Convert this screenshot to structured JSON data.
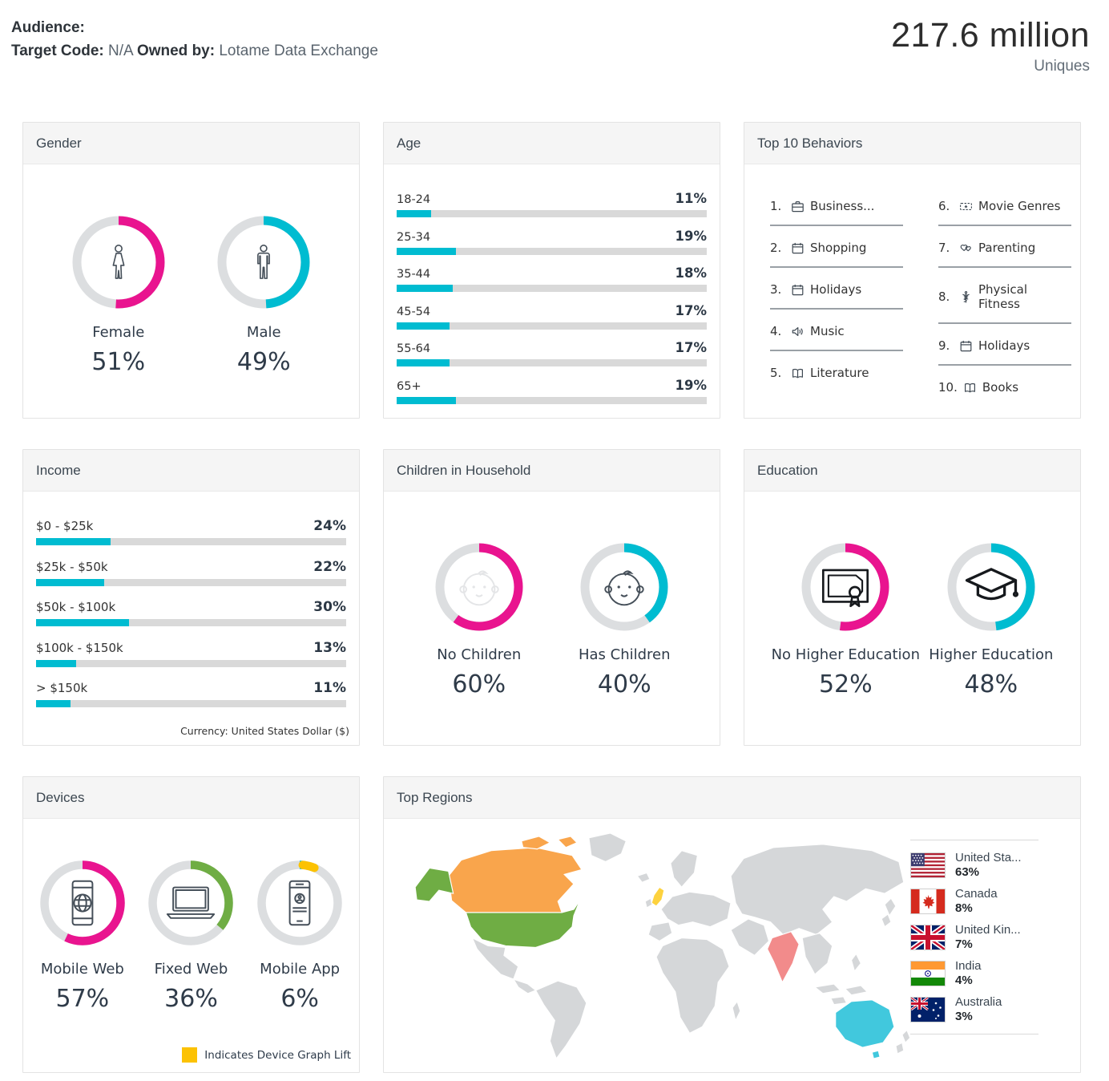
{
  "header": {
    "audience_label": "Audience:",
    "target_code_label": "Target Code:",
    "target_code_value": "N/A",
    "owned_by_label": "Owned by:",
    "owned_by_value": "Lotame Data Exchange",
    "uniques_value": "217.6 million",
    "uniques_label": "Uniques"
  },
  "colors": {
    "pink": "#e9148f",
    "cyan": "#00bcd1",
    "green": "#6fad44",
    "yellow": "#fcc203",
    "track": "#dcdee0"
  },
  "panels": {
    "gender": {
      "title": "Gender",
      "donuts": [
        {
          "label": "Female",
          "value_label": "51%",
          "icon": "female-icon",
          "segments": [
            {
              "pct": 51,
              "color": "pink"
            }
          ]
        },
        {
          "label": "Male",
          "value_label": "49%",
          "icon": "male-icon",
          "segments": [
            {
              "pct": 49,
              "color": "cyan"
            }
          ]
        }
      ]
    },
    "age": {
      "title": "Age",
      "bars": [
        {
          "label": "18-24",
          "pct": 11,
          "value_label": "11%"
        },
        {
          "label": "25-34",
          "pct": 19,
          "value_label": "19%"
        },
        {
          "label": "35-44",
          "pct": 18,
          "value_label": "18%"
        },
        {
          "label": "45-54",
          "pct": 17,
          "value_label": "17%"
        },
        {
          "label": "55-64",
          "pct": 17,
          "value_label": "17%"
        },
        {
          "label": "65+",
          "pct": 19,
          "value_label": "19%"
        }
      ]
    },
    "behaviors": {
      "title": "Top 10 Behaviors",
      "items": [
        {
          "rank": "1.",
          "icon": "briefcase-icon",
          "icon_ref": "#i-briefcase",
          "label": "Business..."
        },
        {
          "rank": "2.",
          "icon": "calendar-icon",
          "icon_ref": "#i-calendar",
          "label": "Shopping"
        },
        {
          "rank": "3.",
          "icon": "calendar-icon",
          "icon_ref": "#i-calendar",
          "label": "Holidays"
        },
        {
          "rank": "4.",
          "icon": "speaker-icon",
          "icon_ref": "#i-speaker",
          "label": "Music"
        },
        {
          "rank": "5.",
          "icon": "book-icon",
          "icon_ref": "#i-book",
          "label": "Literature"
        },
        {
          "rank": "6.",
          "icon": "ticket-icon",
          "icon_ref": "#i-ticket",
          "label": "Movie Genres"
        },
        {
          "rank": "7.",
          "icon": "hearts-icon",
          "icon_ref": "#i-hearts",
          "label": "Parenting"
        },
        {
          "rank": "8.",
          "icon": "caduceus-icon",
          "icon_ref": "#i-caduceus",
          "label": "Physical Fitness"
        },
        {
          "rank": "9.",
          "icon": "calendar-icon",
          "icon_ref": "#i-calendar",
          "label": "Holidays"
        },
        {
          "rank": "10.",
          "icon": "book-icon",
          "icon_ref": "#i-book",
          "label": "Books"
        }
      ]
    },
    "income": {
      "title": "Income",
      "bars": [
        {
          "label": "$0 - $25k",
          "pct": 24,
          "value_label": "24%"
        },
        {
          "label": "$25k - $50k",
          "pct": 22,
          "value_label": "22%"
        },
        {
          "label": "$50k - $100k",
          "pct": 30,
          "value_label": "30%"
        },
        {
          "label": "$100k - $150k",
          "pct": 13,
          "value_label": "13%"
        },
        {
          "label": "> $150k",
          "pct": 11,
          "value_label": "11%"
        }
      ],
      "footnote": "Currency: United States Dollar ($)"
    },
    "children": {
      "title": "Children in Household",
      "donuts": [
        {
          "label": "No Children",
          "value_label": "60%",
          "icon": "baby-icon",
          "segments": [
            {
              "pct": 60,
              "color": "pink"
            }
          ]
        },
        {
          "label": "Has Children",
          "value_label": "40%",
          "icon": "baby-icon",
          "segments": [
            {
              "pct": 40,
              "color": "cyan"
            }
          ]
        }
      ]
    },
    "education": {
      "title": "Education",
      "donuts": [
        {
          "label": "No Higher Education",
          "value_label": "52%",
          "icon": "diploma-icon",
          "segments": [
            {
              "pct": 52,
              "color": "pink"
            }
          ]
        },
        {
          "label": "Higher Education",
          "value_label": "48%",
          "icon": "graduation-cap-icon",
          "segments": [
            {
              "pct": 48,
              "color": "cyan"
            }
          ]
        }
      ]
    },
    "devices": {
      "title": "Devices",
      "donuts": [
        {
          "label": "Mobile Web",
          "value_label": "57%",
          "icon": "mobile-web-icon",
          "segments": [
            {
              "pct": 57,
              "color": "pink"
            }
          ]
        },
        {
          "label": "Fixed Web",
          "value_label": "36%",
          "icon": "laptop-icon",
          "segments": [
            {
              "pct": 36,
              "color": "green"
            }
          ]
        },
        {
          "label": "Mobile App",
          "value_label": "6%",
          "icon": "mobile-app-icon",
          "segments": [
            {
              "pct": 1.3,
              "color": "cyan"
            },
            {
              "pct": 5,
              "color": "yellow",
              "rounded": true
            }
          ]
        }
      ],
      "lift_legend": "Indicates Device Graph Lift"
    },
    "regions": {
      "title": "Top Regions",
      "legend": [
        {
          "name": "United Sta...",
          "full_name": "United States",
          "pct": "63%",
          "flag": "us-flag"
        },
        {
          "name": "Canada",
          "full_name": "Canada",
          "pct": "8%",
          "flag": "canada-flag"
        },
        {
          "name": "United Kin...",
          "full_name": "United Kingdom",
          "pct": "7%",
          "flag": "uk-flag"
        },
        {
          "name": "India",
          "full_name": "India",
          "pct": "4%",
          "flag": "india-flag"
        },
        {
          "name": "Australia",
          "full_name": "Australia",
          "pct": "3%",
          "flag": "australia-flag"
        }
      ],
      "map_colors": {
        "united_states": "#6fad44",
        "canada": "#f9a54c",
        "united_kingdom": "#fdd23e",
        "india": "#f28b8b",
        "australia": "#41c8dd",
        "default": "#d5d7d9"
      }
    }
  },
  "chart_data": [
    {
      "type": "pie",
      "title": "Gender",
      "categories": [
        "Female",
        "Male"
      ],
      "values": [
        51,
        49
      ],
      "unit": "%",
      "colors": [
        "#e9148f",
        "#00bcd1"
      ],
      "style": "donut"
    },
    {
      "type": "bar",
      "title": "Age",
      "orientation": "horizontal",
      "categories": [
        "18-24",
        "25-34",
        "35-44",
        "45-54",
        "55-64",
        "65+"
      ],
      "values": [
        11,
        19,
        18,
        17,
        17,
        19
      ],
      "unit": "%",
      "xlim": [
        0,
        100
      ],
      "bar_color": "#00bcd1"
    },
    {
      "type": "table",
      "title": "Top 10 Behaviors",
      "categories": [
        "Business...",
        "Shopping",
        "Holidays",
        "Music",
        "Literature",
        "Movie Genres",
        "Parenting",
        "Physical Fitness",
        "Holidays",
        "Books"
      ],
      "values": [
        1,
        2,
        3,
        4,
        5,
        6,
        7,
        8,
        9,
        10
      ]
    },
    {
      "type": "bar",
      "title": "Income",
      "orientation": "horizontal",
      "categories": [
        "$0 - $25k",
        "$25k - $50k",
        "$50k - $100k",
        "$100k - $150k",
        "> $150k"
      ],
      "values": [
        24,
        22,
        30,
        13,
        11
      ],
      "unit": "%",
      "xlim": [
        0,
        100
      ],
      "note": "Currency: United States Dollar ($)"
    },
    {
      "type": "pie",
      "title": "Children in Household",
      "categories": [
        "No Children",
        "Has Children"
      ],
      "values": [
        60,
        40
      ],
      "unit": "%",
      "colors": [
        "#e9148f",
        "#00bcd1"
      ],
      "style": "donut"
    },
    {
      "type": "pie",
      "title": "Education",
      "categories": [
        "No Higher Education",
        "Higher Education"
      ],
      "values": [
        52,
        48
      ],
      "unit": "%",
      "colors": [
        "#e9148f",
        "#00bcd1"
      ],
      "style": "donut"
    },
    {
      "type": "pie",
      "title": "Devices",
      "categories": [
        "Mobile Web",
        "Fixed Web",
        "Mobile App"
      ],
      "values": [
        57,
        36,
        6
      ],
      "unit": "%",
      "colors": [
        "#e9148f",
        "#6fad44",
        "#fcc203"
      ],
      "style": "donut",
      "note": "Yellow indicates Device Graph Lift"
    },
    {
      "type": "heatmap",
      "title": "Top Regions",
      "subtype": "choropleth-world-map",
      "categories": [
        "United States",
        "Canada",
        "United Kingdom",
        "India",
        "Australia"
      ],
      "values": [
        63,
        8,
        7,
        4,
        3
      ],
      "unit": "%"
    }
  ]
}
